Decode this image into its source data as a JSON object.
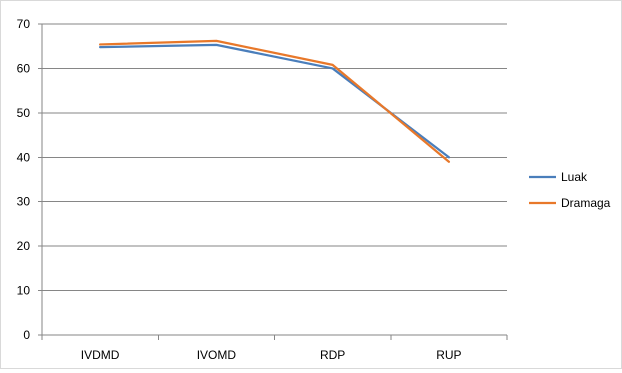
{
  "chart_data": {
    "type": "line",
    "categories": [
      "IVDMD",
      "IVOMD",
      "RDP",
      "RUP"
    ],
    "ylim": [
      0,
      70
    ],
    "yticks": [
      0,
      10,
      20,
      30,
      40,
      50,
      60,
      70
    ],
    "grid": true,
    "legend_position": "right",
    "series": [
      {
        "name": "Luak",
        "color": "#4a7ebb",
        "values": [
          64.8,
          65.3,
          60.0,
          40.0
        ]
      },
      {
        "name": "Dramaga",
        "color": "#e8782a",
        "values": [
          65.4,
          66.2,
          60.8,
          39.0
        ]
      }
    ]
  }
}
